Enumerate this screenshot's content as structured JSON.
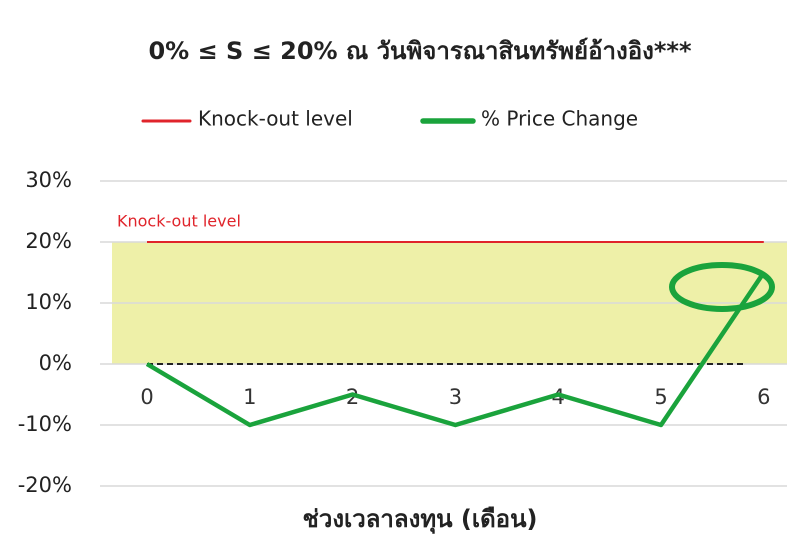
{
  "chart_data": {
    "type": "line",
    "title": "0% ≤ S ≤ 20% ณ วันพิจารณาสินทรัพย์อ้างอิง***",
    "x_label": "ช่วงเวลาลงทุน (เดือน)",
    "categories": [
      "0",
      "1",
      "2",
      "3",
      "4",
      "5",
      "6"
    ],
    "series": [
      {
        "name": "Knock-out level",
        "color": "#e0242b",
        "values": [
          20,
          20,
          20,
          20,
          20,
          20,
          20
        ]
      },
      {
        "name": "% Price Change",
        "color": "#1aa33c",
        "values": [
          0,
          -10,
          -5,
          -10,
          -5,
          -10,
          15
        ]
      }
    ],
    "annotations": [
      {
        "text": "Knock-out level",
        "y": 20
      }
    ],
    "band": [
      0,
      20
    ],
    "band_color": "#eef0a8",
    "ylim": [
      -20,
      30
    ],
    "yticks": [
      {
        "value": -20,
        "label": "-20%"
      },
      {
        "value": -10,
        "label": "-10%"
      },
      {
        "value": 0,
        "label": "0%"
      },
      {
        "value": 10,
        "label": "10%"
      },
      {
        "value": 20,
        "label": "20%"
      },
      {
        "value": 30,
        "label": "30%"
      }
    ],
    "grid": true,
    "legend": "top"
  }
}
